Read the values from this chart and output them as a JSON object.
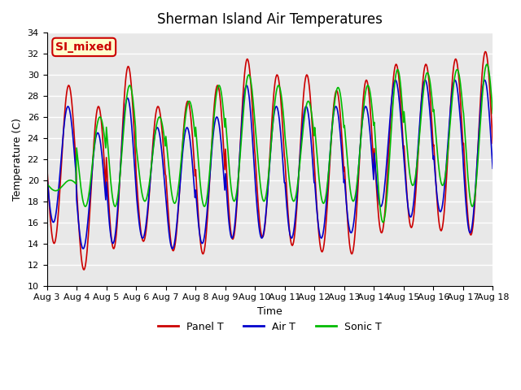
{
  "title": "Sherman Island Air Temperatures",
  "xlabel": "Time",
  "ylabel": "Temperature (C)",
  "ylim": [
    10,
    34
  ],
  "xlim": [
    0,
    15
  ],
  "bg_color": "#e8e8e8",
  "grid_color": "white",
  "panel_t_color": "#cc0000",
  "air_t_color": "#0000cc",
  "sonic_t_color": "#00bb00",
  "annotation_text": "SI_mixed",
  "annotation_bg": "#ffffcc",
  "annotation_border": "#cc0000",
  "x_tick_labels": [
    "Aug 3",
    "Aug 4",
    "Aug 5",
    "Aug 6",
    "Aug 7",
    "Aug 8",
    "Aug 9",
    "Aug 10",
    "Aug 11",
    "Aug 12",
    "Aug 13",
    "Aug 14",
    "Aug 15",
    "Aug 16",
    "Aug 17",
    "Aug 18"
  ],
  "n_days": 15,
  "samples_per_day": 48,
  "daily_mins_panel": [
    14.0,
    11.5,
    13.5,
    14.2,
    13.3,
    13.0,
    14.4,
    14.6,
    13.8,
    13.2,
    13.0,
    15.0,
    15.5,
    15.2,
    14.8
  ],
  "daily_maxs_panel": [
    29.0,
    27.0,
    30.8,
    27.0,
    27.5,
    29.0,
    31.5,
    30.0,
    30.0,
    28.5,
    29.5,
    31.0,
    31.0,
    31.5,
    32.2
  ],
  "daily_mins_air": [
    16.0,
    13.5,
    14.0,
    14.5,
    13.5,
    14.0,
    14.5,
    14.5,
    14.5,
    14.5,
    15.0,
    17.5,
    16.5,
    17.0,
    15.0
  ],
  "daily_maxs_air": [
    27.0,
    24.5,
    27.8,
    25.0,
    25.0,
    26.0,
    29.0,
    27.0,
    27.0,
    27.0,
    27.0,
    29.5,
    29.5,
    29.5,
    29.5
  ],
  "daily_mins_sonic": [
    19.0,
    17.5,
    17.5,
    18.0,
    17.8,
    17.5,
    18.0,
    18.0,
    18.0,
    17.8,
    18.0,
    16.0,
    19.5,
    19.5,
    17.5
  ],
  "daily_maxs_sonic": [
    20.0,
    26.0,
    29.0,
    26.0,
    27.5,
    29.0,
    30.0,
    29.0,
    27.5,
    28.8,
    29.0,
    30.5,
    30.2,
    30.5,
    31.0
  ],
  "phase_panel": 0.0,
  "phase_air": 0.025,
  "phase_sonic": -0.05
}
